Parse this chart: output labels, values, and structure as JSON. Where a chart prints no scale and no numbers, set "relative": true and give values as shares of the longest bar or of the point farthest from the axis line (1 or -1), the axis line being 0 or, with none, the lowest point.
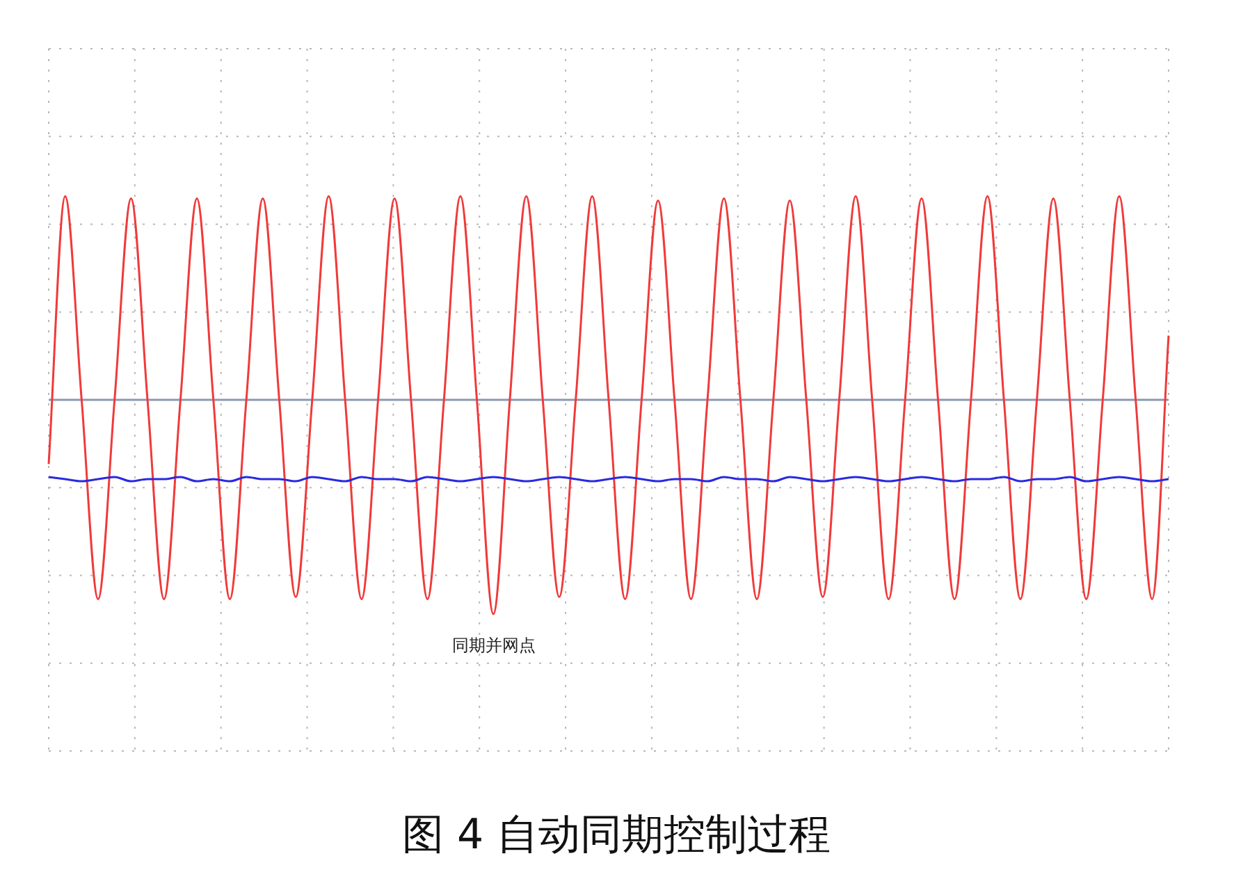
{
  "chart_data": {
    "type": "line",
    "relative": true,
    "title": "图 4  自动同期控制过程",
    "annotations": [
      "同期并网点"
    ],
    "categories": [
      null,
      null,
      null,
      null,
      null,
      null,
      null,
      null,
      null,
      null,
      null,
      null,
      null,
      null,
      null,
      null,
      null,
      null,
      null,
      null,
      null,
      null,
      null,
      null,
      null,
      null,
      null,
      null,
      null,
      null,
      null,
      null,
      null,
      null,
      null,
      null,
      null,
      null,
      null,
      null,
      null,
      null,
      null,
      null,
      null,
      null,
      null,
      null,
      null,
      null,
      null,
      null,
      null,
      null,
      null,
      null,
      null,
      null,
      null,
      null,
      null,
      null,
      null,
      null,
      null,
      null,
      null,
      null,
      null
    ],
    "grid": true,
    "series": [
      {
        "color": "#f03a3a",
        "values": [
          -0.3,
          0.95,
          0,
          -0.93,
          0,
          0.94,
          0,
          -0.93,
          0,
          0.94,
          0,
          -0.93,
          0,
          0.94,
          0,
          -0.92,
          0,
          0.95,
          0,
          -0.93,
          0,
          0.94,
          0,
          -0.93,
          0,
          0.95,
          0,
          -1,
          0,
          0.95,
          0,
          -0.92,
          0,
          0.95,
          0,
          -0.93,
          0,
          0.93,
          0,
          -0.93,
          0,
          0.94,
          0,
          -0.93,
          0,
          0.93,
          0,
          -0.92,
          0,
          0.95,
          0,
          -0.93,
          0,
          0.94,
          0,
          -0.93,
          0,
          0.95,
          0,
          -0.93,
          0,
          0.94,
          0,
          -0.93,
          0,
          0.95,
          0,
          -0.93,
          0.3
        ]
      },
      {
        "color": "#2a2ae0",
        "values": [
          -0.36,
          -0.37,
          -0.38,
          -0.37,
          -0.36,
          -0.38,
          -0.37,
          -0.37,
          -0.36,
          -0.38,
          -0.37,
          -0.38,
          -0.36,
          -0.37,
          -0.37,
          -0.38,
          -0.36,
          -0.37,
          -0.38,
          -0.36,
          -0.37,
          -0.37,
          -0.38,
          -0.36,
          -0.37,
          -0.38,
          -0.37,
          -0.36,
          -0.37,
          -0.38,
          -0.37,
          -0.36,
          -0.37,
          -0.38,
          -0.37,
          -0.36,
          -0.37,
          -0.38,
          -0.37,
          -0.37,
          -0.38,
          -0.36,
          -0.37,
          -0.37,
          -0.38,
          -0.36,
          -0.37,
          -0.38,
          -0.37,
          -0.36,
          -0.37,
          -0.38,
          -0.37,
          -0.36,
          -0.37,
          -0.38,
          -0.37,
          -0.37,
          -0.36,
          -0.38,
          -0.37,
          -0.37,
          -0.36,
          -0.38,
          -0.37,
          -0.36,
          -0.37,
          -0.38,
          -0.37
        ]
      }
    ]
  }
}
